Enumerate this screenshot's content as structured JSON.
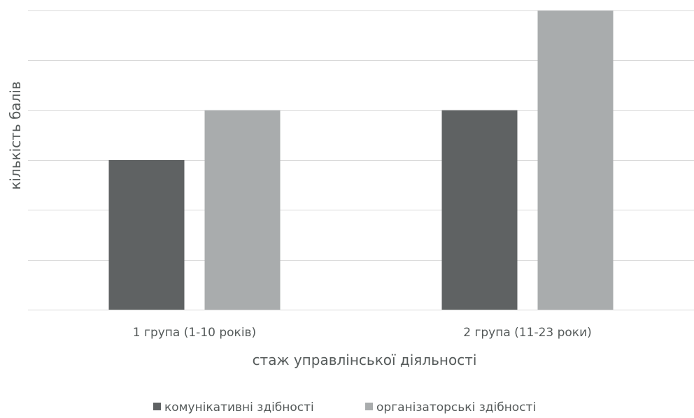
{
  "chart_data": {
    "type": "bar",
    "categories": [
      "1 група (1-10 років)",
      "2 група (11-23 роки)"
    ],
    "series": [
      {
        "name": "комунікативні здібності",
        "values": [
          3,
          4
        ],
        "color": "#5f6263"
      },
      {
        "name": "організаторські здібності",
        "values": [
          4,
          6
        ],
        "color": "#a9acad"
      }
    ],
    "xlabel": "стаж управлінської діяльності",
    "ylabel": "кількість балів",
    "ylim": [
      0,
      6
    ],
    "y_gridlines": [
      0,
      1,
      2,
      3,
      4,
      5,
      6
    ],
    "y_tick_labels_shown": false,
    "grid": true,
    "legend_position": "bottom",
    "gridline_color": "#d9d9d9"
  }
}
